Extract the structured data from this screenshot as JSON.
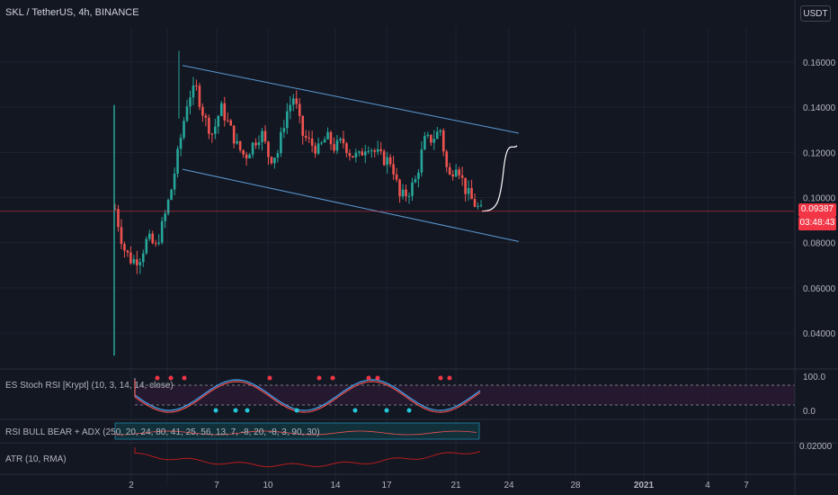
{
  "header": {
    "symbol": "SKL / TetherUS, 4h, BINANCE",
    "currency": "USDT"
  },
  "last_price": {
    "price": "0.09387",
    "countdown": "03:48:43"
  },
  "indicators": {
    "stoch_rsi": {
      "label": "ES Stoch RSI [Krypt] (10, 3, 14, 14, close)",
      "upper": "100.0",
      "lower": "0.0"
    },
    "rsi_bull_bear": {
      "label": "RSI BULL BEAR + ADX (250, 20, 24, 80, 41, 25, 56, 13, 7, -8, 20, -8, 3, 90, 30)"
    },
    "atr": {
      "label": "ATR (10, RMA)",
      "tick": "0.02000"
    }
  },
  "colors": {
    "background": "#131722",
    "up": "#26a69a",
    "down": "#ef5350",
    "channel": "#5b9bd5",
    "price_line": "#f23645"
  },
  "chart_data": {
    "type": "candlestick",
    "ylim": [
      0.028,
      0.165
    ],
    "y_ticks": [
      "0.16000",
      "0.14000",
      "0.12000",
      "0.10000",
      "0.08000",
      "0.06000",
      "0.04000"
    ],
    "x_ticks": [
      "2",
      "7",
      "10",
      "14",
      "17",
      "21",
      "24",
      "28",
      "2021",
      "4",
      "7"
    ],
    "channel": {
      "upper": [
        [
          "4",
          0.1585
        ],
        [
          "24",
          0.1285
        ]
      ],
      "lower": [
        [
          "4",
          0.1125
        ],
        [
          "24",
          0.0805
        ]
      ]
    },
    "projection": [
      0.094,
      0.097,
      0.112,
      0.123
    ],
    "price_path": [
      0.095,
      0.078,
      0.072,
      0.073,
      0.082,
      0.078,
      0.09,
      0.105,
      0.125,
      0.145,
      0.148,
      0.135,
      0.128,
      0.14,
      0.132,
      0.123,
      0.118,
      0.124,
      0.129,
      0.117,
      0.12,
      0.137,
      0.145,
      0.128,
      0.124,
      0.121,
      0.127,
      0.122,
      0.125,
      0.119,
      0.118,
      0.124,
      0.12,
      0.117,
      0.116,
      0.1,
      0.102,
      0.108,
      0.125,
      0.126,
      0.13,
      0.108,
      0.116,
      0.104,
      0.098,
      0.0939
    ]
  }
}
